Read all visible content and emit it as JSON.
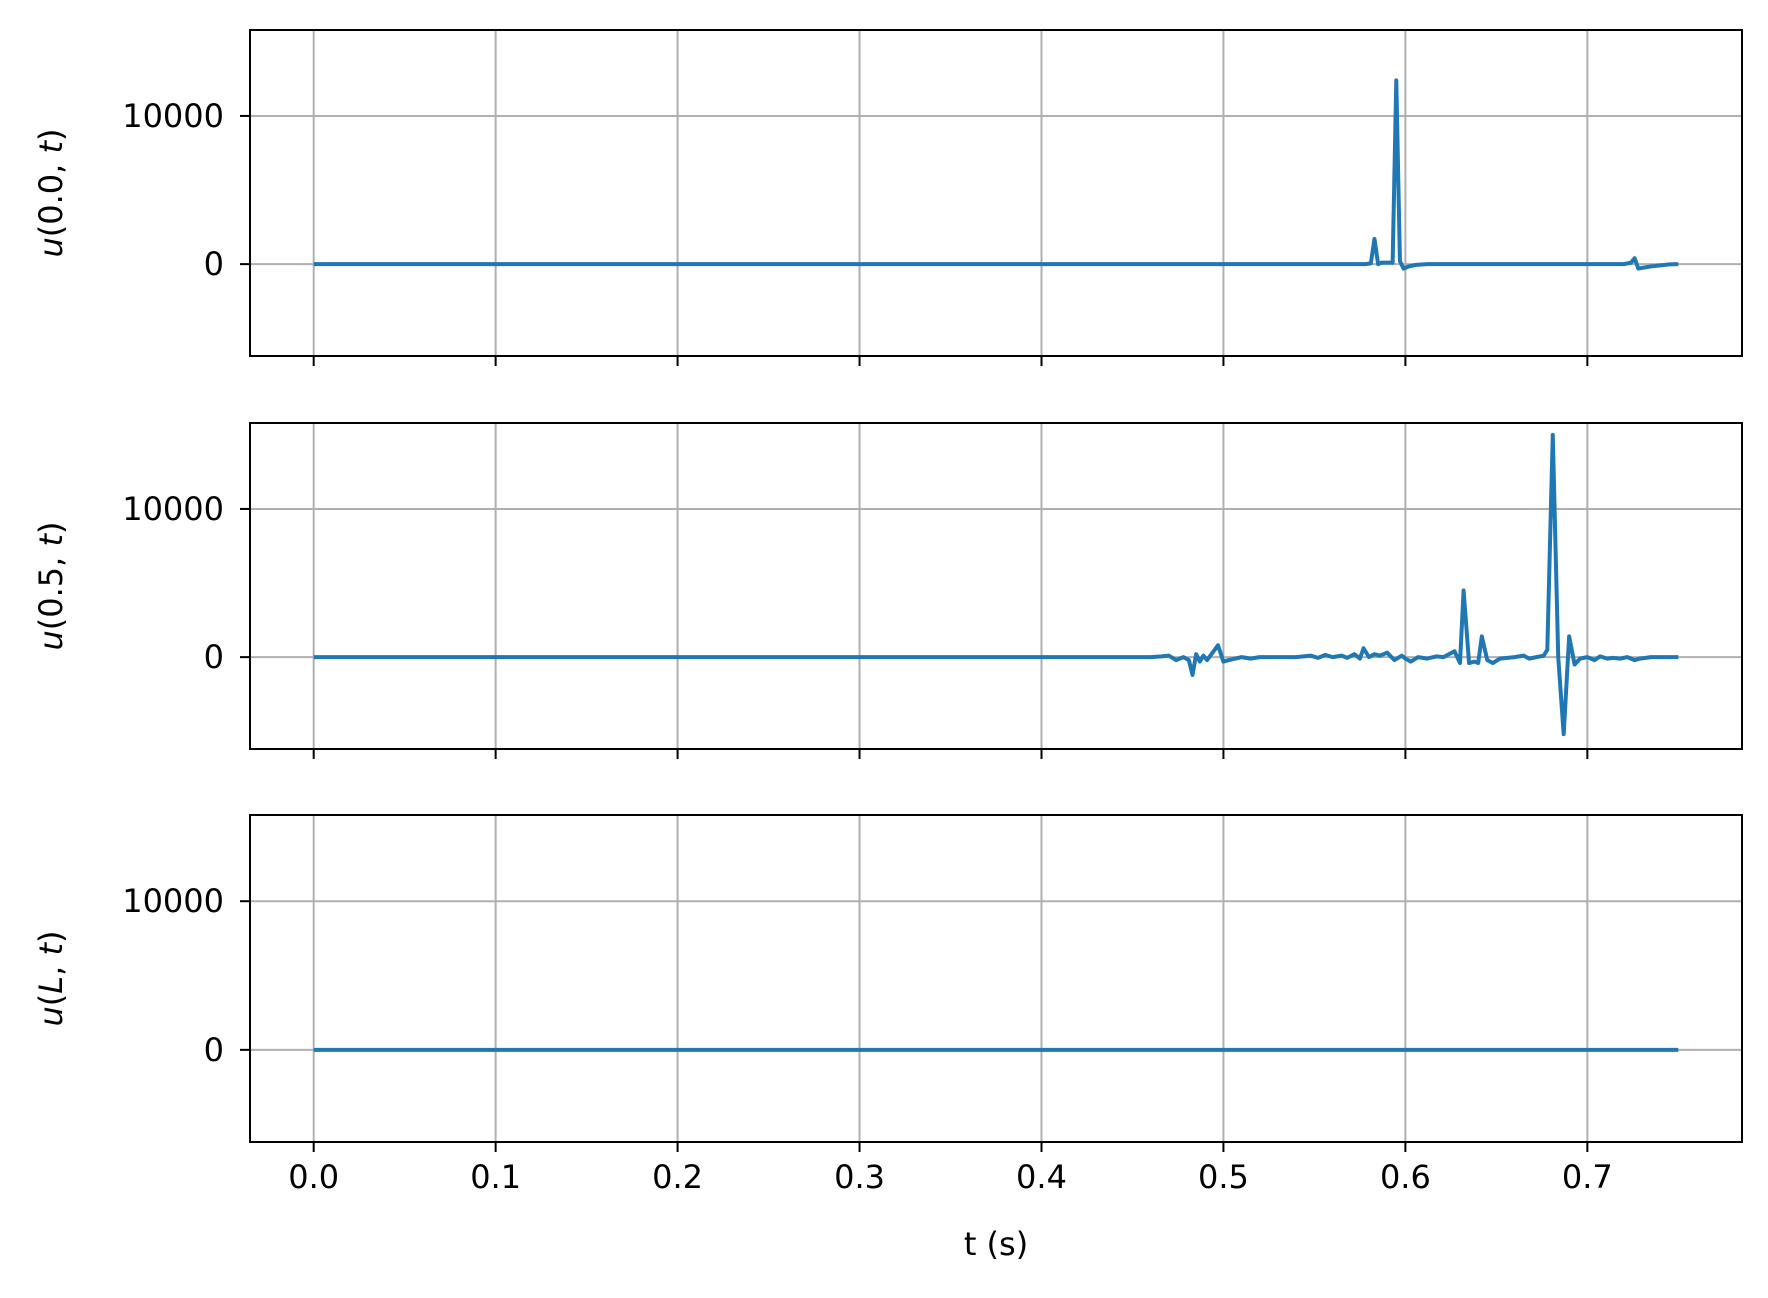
{
  "chart_data": [
    {
      "type": "line",
      "ylabel_func": "u",
      "ylabel_arg": "0.0",
      "ylabel_var": "t",
      "xlim": [
        -0.035,
        0.785
      ],
      "ylim": [
        -6200,
        15800
      ],
      "y_ticks": [
        0,
        10000
      ],
      "y_tick_labels": [
        "0",
        "10000"
      ],
      "x_ticks": [
        0.0,
        0.1,
        0.2,
        0.3,
        0.4,
        0.5,
        0.6,
        0.7
      ],
      "x_tick_labels": [],
      "grid": true,
      "color": "#1f77b4",
      "series": [
        {
          "x": [
            0.0,
            0.1,
            0.2,
            0.3,
            0.4,
            0.5,
            0.578,
            0.581,
            0.583,
            0.585,
            0.587,
            0.593,
            0.595,
            0.597,
            0.599,
            0.602,
            0.606,
            0.612,
            0.62,
            0.64,
            0.66,
            0.68,
            0.7,
            0.72,
            0.724,
            0.726,
            0.728,
            0.735,
            0.745,
            0.75
          ],
          "y": [
            0,
            0,
            0,
            0,
            0,
            0,
            0,
            50,
            1700,
            0,
            100,
            100,
            12400,
            200,
            -300,
            -150,
            -50,
            0,
            0,
            0,
            0,
            0,
            0,
            0,
            100,
            400,
            -300,
            -150,
            -20,
            0
          ]
        }
      ]
    },
    {
      "type": "line",
      "ylabel_func": "u",
      "ylabel_arg": "0.5",
      "ylabel_var": "t",
      "xlim": [
        -0.035,
        0.785
      ],
      "ylim": [
        -6200,
        15800
      ],
      "y_ticks": [
        0,
        10000
      ],
      "y_tick_labels": [
        "0",
        "10000"
      ],
      "x_ticks": [
        0.0,
        0.1,
        0.2,
        0.3,
        0.4,
        0.5,
        0.6,
        0.7
      ],
      "x_tick_labels": [],
      "grid": true,
      "color": "#1f77b4",
      "series": [
        {
          "x": [
            0.0,
            0.1,
            0.2,
            0.3,
            0.4,
            0.46,
            0.466,
            0.47,
            0.474,
            0.478,
            0.481,
            0.483,
            0.485,
            0.487,
            0.489,
            0.491,
            0.494,
            0.497,
            0.5,
            0.503,
            0.51,
            0.515,
            0.52,
            0.53,
            0.54,
            0.548,
            0.552,
            0.556,
            0.56,
            0.565,
            0.568,
            0.572,
            0.575,
            0.577,
            0.58,
            0.583,
            0.586,
            0.59,
            0.594,
            0.598,
            0.6,
            0.603,
            0.607,
            0.612,
            0.617,
            0.621,
            0.624,
            0.627,
            0.63,
            0.632,
            0.635,
            0.638,
            0.64,
            0.642,
            0.645,
            0.648,
            0.652,
            0.66,
            0.665,
            0.668,
            0.672,
            0.676,
            0.678,
            0.681,
            0.684,
            0.687,
            0.69,
            0.693,
            0.696,
            0.7,
            0.704,
            0.707,
            0.711,
            0.714,
            0.718,
            0.722,
            0.726,
            0.729,
            0.735,
            0.742,
            0.75
          ],
          "y": [
            0,
            0,
            0,
            0,
            0,
            0,
            50,
            100,
            -200,
            0,
            -200,
            -1200,
            200,
            -300,
            100,
            -200,
            300,
            800,
            -300,
            -200,
            0,
            -100,
            0,
            0,
            0,
            100,
            -50,
            150,
            0,
            100,
            -50,
            200,
            -100,
            600,
            0,
            200,
            100,
            300,
            -200,
            100,
            -100,
            -300,
            0,
            -100,
            50,
            0,
            200,
            400,
            -400,
            4500,
            -400,
            -300,
            -400,
            1400,
            -200,
            -400,
            -100,
            0,
            100,
            -100,
            0,
            100,
            500,
            15000,
            0,
            -5200,
            1400,
            -500,
            -100,
            0,
            -200,
            50,
            -100,
            -50,
            -100,
            0,
            -200,
            -100,
            0,
            0,
            0
          ]
        }
      ]
    },
    {
      "type": "line",
      "ylabel_func": "u",
      "ylabel_arg": "L",
      "ylabel_var": "t",
      "xlabel": "t (s)",
      "xlim": [
        -0.035,
        0.785
      ],
      "ylim": [
        -6200,
        15800
      ],
      "y_ticks": [
        0,
        10000
      ],
      "y_tick_labels": [
        "0",
        "10000"
      ],
      "x_ticks": [
        0.0,
        0.1,
        0.2,
        0.3,
        0.4,
        0.5,
        0.6,
        0.7
      ],
      "x_tick_labels": [
        "0.0",
        "0.1",
        "0.2",
        "0.3",
        "0.4",
        "0.5",
        "0.6",
        "0.7"
      ],
      "grid": true,
      "color": "#1f77b4",
      "series": [
        {
          "x": [
            0.0,
            0.75
          ],
          "y": [
            0,
            0
          ]
        }
      ]
    }
  ]
}
